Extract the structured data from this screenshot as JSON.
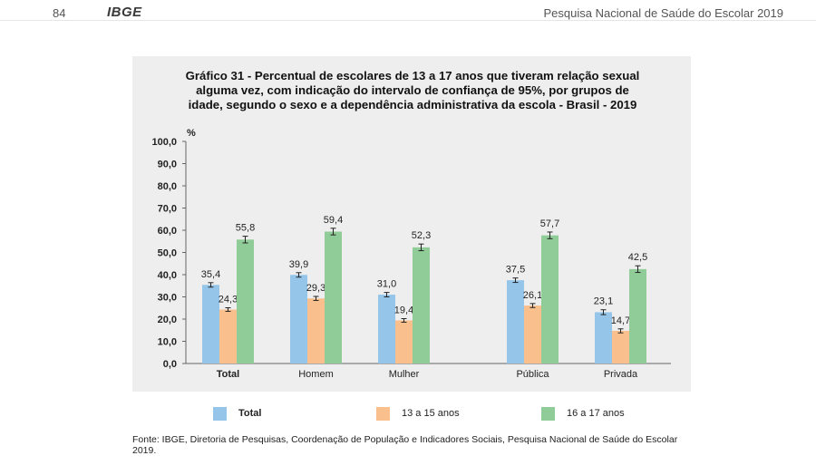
{
  "page_header": {
    "page_number": "84",
    "logo": "IBGE",
    "publication": "Pesquisa Nacional de Saúde do Escolar 2019"
  },
  "chart_data": {
    "type": "bar",
    "title_lines": [
      "Gráfico 31 - Percentual de escolares de 13 a 17 anos que tiveram relação sexual",
      "alguma vez, com indicação do intervalo de confiança de 95%, por  grupos de",
      "idade, segundo o sexo e a dependência administrativa da escola - Brasil - 2019"
    ],
    "ylabel": "%",
    "ylim": [
      0,
      100
    ],
    "yticks": [
      "0,0",
      "10,0",
      "20,0",
      "30,0",
      "40,0",
      "50,0",
      "60,0",
      "70,0",
      "80,0",
      "90,0",
      "100,0"
    ],
    "categories": [
      "Total",
      "Homem",
      "Mulher",
      "Pública",
      "Privada"
    ],
    "series": [
      {
        "name": "Total",
        "color": "#95c6ea",
        "values": [
          35.4,
          39.9,
          31.0,
          37.5,
          23.1
        ],
        "labels": [
          "35,4",
          "39,9",
          "31,0",
          "37,5",
          "23,1"
        ],
        "ci": [
          [
            34.4,
            36.4
          ],
          [
            38.9,
            40.9
          ],
          [
            30.0,
            32.0
          ],
          [
            36.5,
            38.5
          ],
          [
            22.0,
            24.2
          ]
        ]
      },
      {
        "name": "13 a 15 anos",
        "color": "#f9c08e",
        "values": [
          24.3,
          29.3,
          19.4,
          26.1,
          14.7
        ],
        "labels": [
          "24,3",
          "29,3",
          "19,4",
          "26,1",
          "14,7"
        ],
        "ci": [
          [
            23.5,
            25.1
          ],
          [
            28.4,
            30.2
          ],
          [
            18.6,
            20.2
          ],
          [
            25.2,
            27.0
          ],
          [
            13.8,
            15.6
          ]
        ]
      },
      {
        "name": "16 a 17 anos",
        "color": "#8fcc98",
        "values": [
          55.8,
          59.4,
          52.3,
          57.7,
          42.5
        ],
        "labels": [
          "55,8",
          "59,4",
          "52,3",
          "57,7",
          "42,5"
        ],
        "ci": [
          [
            54.3,
            57.3
          ],
          [
            57.9,
            60.9
          ],
          [
            50.8,
            53.8
          ],
          [
            56.2,
            59.2
          ],
          [
            41.0,
            44.0
          ]
        ]
      }
    ],
    "legend": [
      "Total",
      "13 a 15 anos",
      "16 a 17 anos"
    ],
    "legend_position": "bottom",
    "grid": false
  },
  "source": "Fonte: IBGE, Diretoria de Pesquisas, Coordenação de População e Indicadores Sociais, Pesquisa Nacional de Saúde do Escolar 2019."
}
